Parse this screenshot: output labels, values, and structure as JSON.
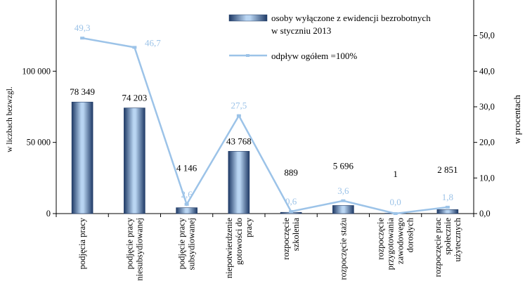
{
  "chart_data": {
    "type": "bar",
    "categories": [
      "podjęcia pracy",
      "podjęcie pracy niesubsydiowanej",
      "podjęcie pracy subsydiowanej",
      "niepotwierdzenie gotowości do pracy",
      "rozpoczęcie szkolenia",
      "rozpoczęcie stażu",
      "rozpoczęcie przygotowania zawodowego dorosłych",
      "rozpoczęcie prac społecznie użytecznych"
    ],
    "category_lines": [
      [
        "podjęcia pracy"
      ],
      [
        "podjęcie pracy",
        "niesubsydiowanej"
      ],
      [
        "podjęcie pracy",
        "subsydiowanej"
      ],
      [
        "niepotwierdzenie",
        "gotowości do",
        "pracy"
      ],
      [
        "rozpoczęcie",
        "szkolenia"
      ],
      [
        "rozpoczęcie stażu"
      ],
      [
        "rozpoczęcie",
        "przygotowania",
        "zawodowego",
        "dorosłych"
      ],
      [
        "rozpoczęcie prac",
        "społecznie",
        "użytecznych"
      ]
    ],
    "series": [
      {
        "name": "osoby wyłączone z ewidencji bezrobotnych w styczniu 2013",
        "name_lines": [
          "osoby wyłączone z ewidencji bezrobotnych",
          "w styczniu 2013"
        ],
        "axis": "left",
        "type": "bar",
        "values": [
          78349,
          74203,
          4146,
          43768,
          889,
          5696,
          1,
          2851
        ],
        "labels": [
          "78 349",
          "74 203",
          "4 146",
          "43 768",
          "889",
          "5 696",
          "1",
          "2 851"
        ]
      },
      {
        "name": "odpływ ogółem =100%",
        "axis": "right",
        "type": "line",
        "values": [
          49.3,
          46.7,
          2.6,
          27.5,
          0.6,
          3.6,
          0.0,
          1.8
        ],
        "labels": [
          "49,3",
          "46,7",
          "2,6",
          "27,5",
          "0,6",
          "3,6",
          "0,0",
          "1,8"
        ]
      }
    ],
    "y_left": {
      "label": "w liczbach bezwzgl.",
      "range": [
        0,
        150000
      ],
      "ticks": [
        0,
        50000,
        100000
      ],
      "tick_labels": [
        "0",
        "50 000",
        "100 000"
      ]
    },
    "y_right": {
      "label": "w procentach",
      "range": [
        0,
        60
      ],
      "ticks": [
        0,
        10,
        20,
        30,
        40,
        50
      ],
      "tick_labels": [
        "0,0",
        "10,0",
        "20,0",
        "30,0",
        "40,0",
        "50,0"
      ]
    },
    "legend_position": "top-right",
    "grid": false
  },
  "colors": {
    "bar_dark": "#1f3a66",
    "bar_light": "#b9d5f2",
    "line": "#9cc3e8"
  }
}
